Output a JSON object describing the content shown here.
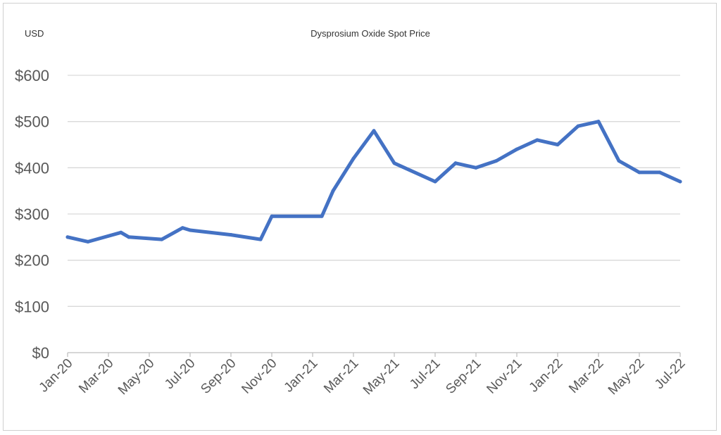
{
  "chart_data": {
    "type": "line",
    "title": "Dysprosium Oxide Spot Price",
    "unit_label": "USD",
    "xlabel": "",
    "ylabel": "",
    "ylim": [
      0,
      600
    ],
    "y_ticks": [
      "$0",
      "$100",
      "$200",
      "$300",
      "$400",
      "$500",
      "$600"
    ],
    "y_tick_values": [
      0,
      100,
      200,
      300,
      400,
      500,
      600
    ],
    "x_ticks": [
      "Jan-20",
      "Mar-20",
      "May-20",
      "Jul-20",
      "Sep-20",
      "Nov-20",
      "Jan-21",
      "Mar-21",
      "May-21",
      "Jul-21",
      "Sep-21",
      "Nov-21",
      "Jan-22",
      "Mar-22",
      "May-22",
      "Jul-22"
    ],
    "xlim": [
      "2020-01",
      "2022-07"
    ],
    "grid": true,
    "legend": "none",
    "series": [
      {
        "color": "#4472c4",
        "points": [
          {
            "x": "2020-01-01",
            "y": 250
          },
          {
            "x": "2020-02-01",
            "y": 240
          },
          {
            "x": "2020-03-20",
            "y": 260
          },
          {
            "x": "2020-04-01",
            "y": 250
          },
          {
            "x": "2020-05-20",
            "y": 245
          },
          {
            "x": "2020-06-20",
            "y": 270
          },
          {
            "x": "2020-07-01",
            "y": 265
          },
          {
            "x": "2020-09-01",
            "y": 255
          },
          {
            "x": "2020-10-15",
            "y": 245
          },
          {
            "x": "2020-11-01",
            "y": 295
          },
          {
            "x": "2021-01-15",
            "y": 295
          },
          {
            "x": "2021-02-01",
            "y": 350
          },
          {
            "x": "2021-03-01",
            "y": 420
          },
          {
            "x": "2021-04-01",
            "y": 480
          },
          {
            "x": "2021-05-01",
            "y": 410
          },
          {
            "x": "2021-07-01",
            "y": 370
          },
          {
            "x": "2021-08-01",
            "y": 410
          },
          {
            "x": "2021-09-01",
            "y": 400
          },
          {
            "x": "2021-10-01",
            "y": 415
          },
          {
            "x": "2021-11-01",
            "y": 440
          },
          {
            "x": "2021-12-01",
            "y": 460
          },
          {
            "x": "2022-01-01",
            "y": 450
          },
          {
            "x": "2022-02-01",
            "y": 490
          },
          {
            "x": "2022-03-01",
            "y": 500
          },
          {
            "x": "2022-04-01",
            "y": 415
          },
          {
            "x": "2022-05-01",
            "y": 390
          },
          {
            "x": "2022-06-01",
            "y": 390
          },
          {
            "x": "2022-07-01",
            "y": 370
          }
        ]
      }
    ]
  }
}
